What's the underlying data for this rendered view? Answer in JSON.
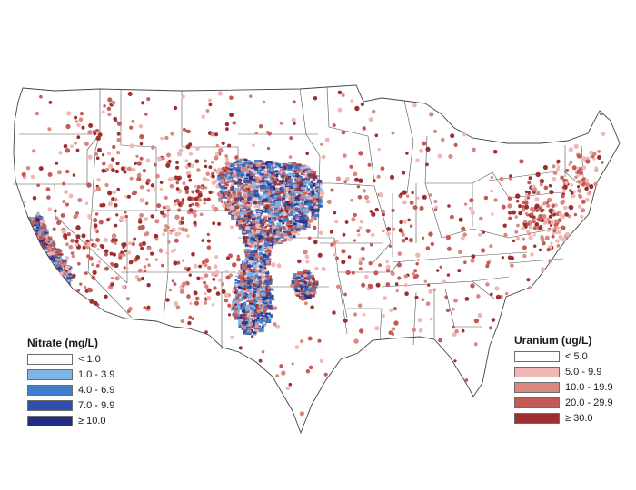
{
  "map": {
    "subject": "Conterminous United States",
    "state_boundaries": true
  },
  "nitrate_legend": {
    "title": "Nitrate (mg/L)",
    "classes": [
      {
        "label": "<  1.0",
        "color": "#ffffff"
      },
      {
        "label": "1.0 - 3.9",
        "color": "#7fb6e6"
      },
      {
        "label": "4.0 - 6.9",
        "color": "#3f7fcc"
      },
      {
        "label": "7.0 - 9.9",
        "color": "#2d4fae"
      },
      {
        "label": "≥ 10.0",
        "color": "#222c86"
      }
    ]
  },
  "uranium_legend": {
    "title": "Uranium (ug/L)",
    "classes": [
      {
        "label": "< 5.0",
        "color": "#ffffff"
      },
      {
        "label": "5.0 - 9.9",
        "color": "#efb8b4"
      },
      {
        "label": "10.0 - 19.9",
        "color": "#d98880"
      },
      {
        "label": "20.0 - 29.9",
        "color": "#c35a56"
      },
      {
        "label": "≥ 30.0",
        "color": "#9e2f31"
      }
    ]
  }
}
